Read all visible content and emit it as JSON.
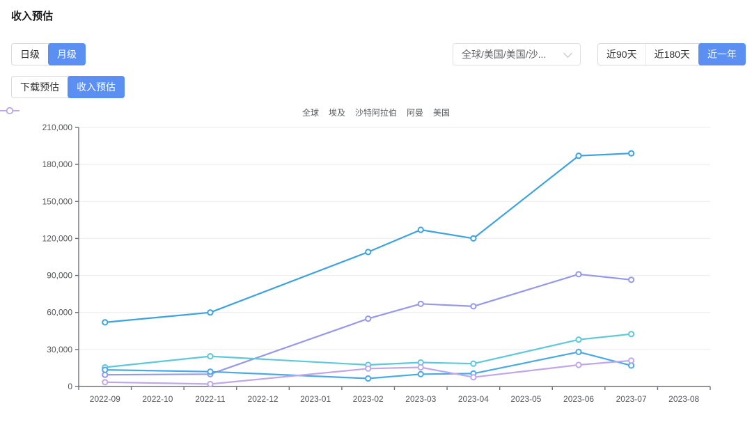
{
  "page": {
    "title": "收入预估"
  },
  "controls": {
    "granularity": {
      "items": [
        {
          "label": "日级",
          "selected": false
        },
        {
          "label": "月级",
          "selected": true
        }
      ]
    },
    "region_select": {
      "value": "全球/美国/美国/沙..."
    },
    "time_range": {
      "items": [
        {
          "label": "近90天",
          "selected": false
        },
        {
          "label": "近180天",
          "selected": false
        },
        {
          "label": "近一年",
          "selected": true
        }
      ]
    },
    "metric_tabs": {
      "items": [
        {
          "label": "下载预估",
          "selected": false
        },
        {
          "label": "收入预估",
          "selected": true
        }
      ]
    }
  },
  "colors": {
    "accent": "#5b8ff2",
    "axis": "#6e7079",
    "grid": "#ebebee",
    "tick_text": "#54565a",
    "legend_text": "#5a5c60"
  },
  "chart_data": {
    "type": "line",
    "title": "收入预估",
    "categories": [
      "2022-09",
      "2022-10",
      "2022-11",
      "2022-12",
      "2023-01",
      "2023-02",
      "2023-03",
      "2023-04",
      "2023-05",
      "2023-06",
      "2023-07",
      "2023-08"
    ],
    "series": [
      {
        "name": "全球",
        "color": "#3da2e0",
        "values": [
          52000,
          null,
          60000,
          null,
          null,
          109000,
          127000,
          120000,
          null,
          187000,
          189000,
          null
        ]
      },
      {
        "name": "埃及",
        "color": "#9599e8",
        "values": [
          9500,
          null,
          10000,
          null,
          null,
          55000,
          67000,
          65000,
          null,
          91000,
          86500,
          null
        ]
      },
      {
        "name": "沙特阿拉伯",
        "color": "#5ec8d8",
        "values": [
          15500,
          null,
          24500,
          null,
          null,
          17500,
          19500,
          18500,
          null,
          38000,
          42500,
          null
        ]
      },
      {
        "name": "阿曼",
        "color": "#49a9e6",
        "values": [
          13500,
          null,
          12000,
          null,
          null,
          6500,
          10000,
          10500,
          null,
          28000,
          17000,
          null
        ]
      },
      {
        "name": "美国",
        "color": "#bfa7ea",
        "values": [
          3500,
          null,
          2000,
          null,
          null,
          14500,
          15500,
          7500,
          null,
          17500,
          21000,
          null
        ]
      }
    ],
    "ylim": [
      0,
      210000
    ],
    "ytick_interval": 30000,
    "xlabel": "",
    "ylabel": "",
    "grid": true,
    "legend_position": "top-center",
    "connect_nulls": true,
    "marker": "hollow-circle"
  }
}
